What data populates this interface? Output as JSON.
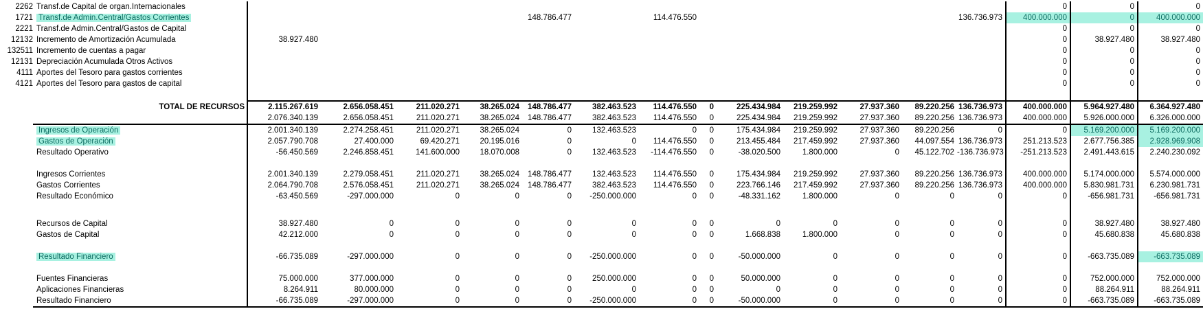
{
  "table": {
    "highlight_bg": "#a8f1e1",
    "highlight_text": "#0c6b60",
    "border_color": "#000000",
    "rows": [
      {
        "code": "2262",
        "label": "Transf.de Capital de organ.Internacionales",
        "values": [
          "",
          "",
          "",
          "",
          "",
          "",
          "",
          "",
          "",
          "",
          "",
          "",
          "",
          "0",
          "0",
          "0"
        ]
      },
      {
        "code": "1721",
        "label": "Transf.de Admin.Central/Gastos Corrientes",
        "label_hl": true,
        "hl": [
          13,
          14,
          15
        ],
        "values": [
          "",
          "",
          "",
          "",
          "148.786.477",
          "",
          "114.476.550",
          "",
          "",
          "",
          "",
          "",
          "136.736.973",
          "400.000.000",
          "0",
          "400.000.000"
        ]
      },
      {
        "code": "2221",
        "label": "Transf.de Admin.Central/Gastos de Capital",
        "values": [
          "",
          "",
          "",
          "",
          "",
          "",
          "",
          "",
          "",
          "",
          "",
          "",
          "",
          "0",
          "0",
          "0"
        ]
      },
      {
        "code": "12132",
        "label": "Incremento de Amortización Acumulada",
        "values": [
          "38.927.480",
          "",
          "",
          "",
          "",
          "",
          "",
          "",
          "",
          "",
          "",
          "",
          "",
          "0",
          "38.927.480",
          "38.927.480"
        ]
      },
      {
        "code": "132511",
        "label": "Incremento de cuentas a pagar",
        "values": [
          "",
          "",
          "",
          "",
          "",
          "",
          "",
          "",
          "",
          "",
          "",
          "",
          "",
          "0",
          "0",
          "0"
        ]
      },
      {
        "code": "12131",
        "label": "Depreciación Acumulada Otros Activos",
        "values": [
          "",
          "",
          "",
          "",
          "",
          "",
          "",
          "",
          "",
          "",
          "",
          "",
          "",
          "0",
          "0",
          "0"
        ]
      },
      {
        "code": "4111",
        "label": "Aportes del Tesoro para gastos corrientes",
        "values": [
          "",
          "",
          "",
          "",
          "",
          "",
          "",
          "",
          "",
          "",
          "",
          "",
          "",
          "0",
          "0",
          "0"
        ]
      },
      {
        "code": "4121",
        "label": "Aportes del Tesoro para gastos de capital",
        "values": [
          "",
          "",
          "",
          "",
          "",
          "",
          "",
          "",
          "",
          "",
          "",
          "",
          "",
          "0",
          "0",
          "0"
        ]
      },
      {
        "blank": true,
        "h": 8
      },
      {
        "label": "TOTAL DE RECURSOS",
        "total": true,
        "bold": true,
        "bt": true,
        "values": [
          "2.115.267.619",
          "2.656.058.451",
          "211.020.271",
          "38.265.024",
          "148.786.477",
          "382.463.523",
          "114.476.550",
          "0",
          "225.434.984",
          "219.259.992",
          "27.937.360",
          "89.220.256",
          "136.736.973",
          "400.000.000",
          "5.964.927.480",
          "6.364.927.480"
        ]
      },
      {
        "label": "",
        "bb": true,
        "values": [
          "2.076.340.139",
          "2.656.058.451",
          "211.020.271",
          "38.265.024",
          "148.786.477",
          "382.463.523",
          "114.476.550",
          "0",
          "225.434.984",
          "219.259.992",
          "27.937.360",
          "89.220.256",
          "136.736.973",
          "400.000.000",
          "5.926.000.000",
          "6.326.000.000"
        ]
      },
      {
        "label": "Ingresos de Operación",
        "label_hl": true,
        "hl": [
          14,
          15
        ],
        "values": [
          "2.001.340.139",
          "2.274.258.451",
          "211.020.271",
          "38.265.024",
          "0",
          "132.463.523",
          "0",
          "0",
          "175.434.984",
          "219.259.992",
          "27.937.360",
          "89.220.256",
          "0",
          "0",
          "5.169.200.000",
          "5.169.200.000"
        ]
      },
      {
        "label": "Gastos de Operación",
        "label_hl": true,
        "hl": [
          15
        ],
        "values": [
          "2.057.790.708",
          "27.400.000",
          "69.420.271",
          "20.195.016",
          "0",
          "0",
          "114.476.550",
          "0",
          "213.455.484",
          "217.459.992",
          "27.937.360",
          "44.097.554",
          "136.736.973",
          "251.213.523",
          "2.677.756.385",
          "2.928.969.908"
        ]
      },
      {
        "label": "Resultado Operativo",
        "values": [
          "-56.450.569",
          "2.246.858.451",
          "141.600.000",
          "18.070.008",
          "0",
          "132.463.523",
          "-114.476.550",
          "0",
          "-38.020.500",
          "1.800.000",
          "0",
          "45.122.702",
          "-136.736.973",
          "-251.213.523",
          "2.491.443.615",
          "2.240.230.092"
        ]
      },
      {
        "blank": true,
        "h": 16
      },
      {
        "label": "Ingresos Corrientes",
        "values": [
          "2.001.340.139",
          "2.279.058.451",
          "211.020.271",
          "38.265.024",
          "148.786.477",
          "132.463.523",
          "114.476.550",
          "0",
          "175.434.984",
          "219.259.992",
          "27.937.360",
          "89.220.256",
          "136.736.973",
          "400.000.000",
          "5.174.000.000",
          "5.574.000.000"
        ]
      },
      {
        "label": "Gastos Corrientes",
        "values": [
          "2.064.790.708",
          "2.576.058.451",
          "211.020.271",
          "38.265.024",
          "148.786.477",
          "382.463.523",
          "114.476.550",
          "0",
          "223.766.146",
          "217.459.992",
          "27.937.360",
          "89.220.256",
          "136.736.973",
          "400.000.000",
          "5.830.981.731",
          "6.230.981.731"
        ]
      },
      {
        "label": "Resultado Económico",
        "values": [
          "-63.450.569",
          "-297.000.000",
          "0",
          "0",
          "0",
          "-250.000.000",
          "0",
          "0",
          "-48.331.162",
          "1.800.000",
          "0",
          "0",
          "0",
          "0",
          "-656.981.731",
          "-656.981.731"
        ]
      },
      {
        "blank": true,
        "h": 24
      },
      {
        "label": "Recursos de Capital",
        "values": [
          "38.927.480",
          "0",
          "0",
          "0",
          "0",
          "0",
          "0",
          "0",
          "0",
          "0",
          "0",
          "0",
          "0",
          "0",
          "38.927.480",
          "38.927.480"
        ]
      },
      {
        "label": "Gastos de Capital",
        "values": [
          "42.212.000",
          "0",
          "0",
          "0",
          "0",
          "0",
          "0",
          "0",
          "1.668.838",
          "1.800.000",
          "0",
          "0",
          "0",
          "0",
          "45.680.838",
          "45.680.838"
        ]
      },
      {
        "blank": true,
        "h": 16
      },
      {
        "label": "Resultado Financiero",
        "label_hl": true,
        "hl": [
          15
        ],
        "values": [
          "-66.735.089",
          "-297.000.000",
          "0",
          "0",
          "0",
          "-250.000.000",
          "0",
          "0",
          "-50.000.000",
          "0",
          "0",
          "0",
          "0",
          "0",
          "-663.735.089",
          "-663.735.089"
        ]
      },
      {
        "blank": true,
        "h": 16
      },
      {
        "label": "Fuentes Financieras",
        "values": [
          "75.000.000",
          "377.000.000",
          "0",
          "0",
          "0",
          "250.000.000",
          "0",
          "0",
          "50.000.000",
          "0",
          "0",
          "0",
          "0",
          "0",
          "752.000.000",
          "752.000.000"
        ]
      },
      {
        "label": "Aplicaciones Financieras",
        "values": [
          "8.264.911",
          "80.000.000",
          "0",
          "0",
          "0",
          "0",
          "0",
          "0",
          "0",
          "0",
          "0",
          "0",
          "0",
          "0",
          "88.264.911",
          "88.264.911"
        ]
      },
      {
        "label": "Resultado Financiero",
        "bb": true,
        "values": [
          "-66.735.089",
          "-297.000.000",
          "0",
          "0",
          "0",
          "-250.000.000",
          "0",
          "0",
          "-50.000.000",
          "0",
          "0",
          "0",
          "0",
          "0",
          "-663.735.089",
          "-663.735.089"
        ]
      }
    ]
  }
}
